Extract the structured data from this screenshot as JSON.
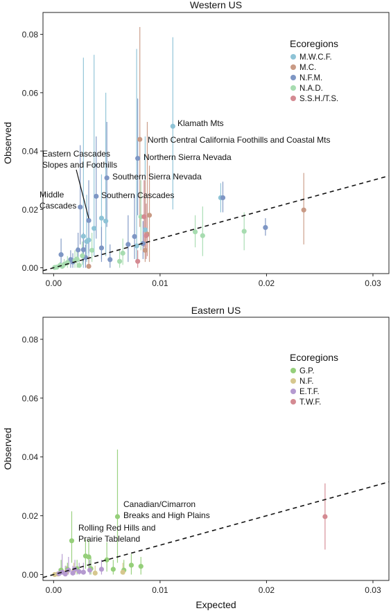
{
  "chart_data": [
    {
      "type": "scatter",
      "title": "Western US",
      "xlabel": "",
      "ylabel": "Observed",
      "xlim": [
        -0.001,
        0.0315
      ],
      "ylim": [
        -0.002,
        0.0875
      ],
      "xticks": [
        0.0,
        0.01,
        0.02,
        0.03
      ],
      "xtick_labels": [
        "0.00",
        "0.01",
        "0.02",
        "0.03"
      ],
      "yticks": [
        0.0,
        0.02,
        0.04,
        0.06,
        0.08
      ],
      "ytick_labels": [
        "0.00",
        "0.02",
        "0.04",
        "0.06",
        "0.08"
      ],
      "grid": false,
      "reference_line": {
        "style": "dashed",
        "from": [
          -0.001,
          -0.001
        ],
        "to": [
          0.0315,
          0.0315
        ]
      },
      "legend": {
        "title": "Ecoregions",
        "position": "top-right"
      },
      "series": [
        {
          "name": "M.W.C.F.",
          "color": "#8ec3d6",
          "points": [
            {
              "x": 0.0028,
              "y": 0.0108,
              "lo": 0.0,
              "hi": 0.072
            },
            {
              "x": 0.0031,
              "y": 0.009,
              "lo": 0.002,
              "hi": 0.025
            },
            {
              "x": 0.0033,
              "y": 0.0095,
              "lo": 0.002,
              "hi": 0.021
            },
            {
              "x": 0.0038,
              "y": 0.0135,
              "lo": 0.004,
              "hi": 0.073
            },
            {
              "x": 0.0045,
              "y": 0.017,
              "lo": 0.003,
              "hi": 0.032
            },
            {
              "x": 0.0049,
              "y": 0.016,
              "lo": 0.004,
              "hi": 0.06
            },
            {
              "x": 0.0078,
              "y": 0.0075,
              "lo": 0.002,
              "hi": 0.075
            },
            {
              "x": 0.0086,
              "y": 0.013,
              "lo": 0.003,
              "hi": 0.045
            },
            {
              "x": 0.0112,
              "y": 0.0485,
              "lo": 0.02,
              "hi": 0.079
            },
            {
              "x": 0.0157,
              "y": 0.024,
              "lo": 0.019,
              "hi": 0.029
            }
          ]
        },
        {
          "name": "M.C.",
          "color": "#c99a85",
          "points": [
            {
              "x": 0.0033,
              "y": 0.0005,
              "lo": 0.0,
              "hi": 0.004
            },
            {
              "x": 0.0081,
              "y": 0.044,
              "lo": 0.014,
              "hi": 0.0825
            },
            {
              "x": 0.0086,
              "y": 0.006,
              "lo": 0.002,
              "hi": 0.03
            },
            {
              "x": 0.0088,
              "y": 0.0115,
              "lo": 0.004,
              "hi": 0.05
            },
            {
              "x": 0.009,
              "y": 0.018,
              "lo": 0.002,
              "hi": 0.035
            },
            {
              "x": 0.0235,
              "y": 0.0198,
              "lo": 0.008,
              "hi": 0.0325
            }
          ]
        },
        {
          "name": "N.F.M.",
          "color": "#7e96c4",
          "points": [
            {
              "x": 0.0007,
              "y": 0.0045,
              "lo": 0.0,
              "hi": 0.01
            },
            {
              "x": 0.0016,
              "y": 0.0028,
              "lo": 0.0,
              "hi": 0.006
            },
            {
              "x": 0.0018,
              "y": 0.002,
              "lo": 0.0,
              "hi": 0.005
            },
            {
              "x": 0.0023,
              "y": 0.0061,
              "lo": 0.002,
              "hi": 0.012
            },
            {
              "x": 0.0025,
              "y": 0.0208,
              "lo": 0.008,
              "hi": 0.042
            },
            {
              "x": 0.0028,
              "y": 0.0062,
              "lo": 0.002,
              "hi": 0.012
            },
            {
              "x": 0.003,
              "y": 0.0035,
              "lo": 0.0,
              "hi": 0.008
            },
            {
              "x": 0.0033,
              "y": 0.0162,
              "lo": 0.005,
              "hi": 0.03
            },
            {
              "x": 0.004,
              "y": 0.0245,
              "lo": 0.01,
              "hi": 0.045
            },
            {
              "x": 0.0045,
              "y": 0.0068,
              "lo": 0.002,
              "hi": 0.014
            },
            {
              "x": 0.005,
              "y": 0.0308,
              "lo": 0.014,
              "hi": 0.05
            },
            {
              "x": 0.0053,
              "y": 0.0028,
              "lo": 0.0,
              "hi": 0.008
            },
            {
              "x": 0.007,
              "y": 0.008,
              "lo": 0.002,
              "hi": 0.018
            },
            {
              "x": 0.0076,
              "y": 0.0107,
              "lo": 0.003,
              "hi": 0.025
            },
            {
              "x": 0.0079,
              "y": 0.0375,
              "lo": 0.018,
              "hi": 0.058
            },
            {
              "x": 0.0084,
              "y": 0.0083,
              "lo": 0.003,
              "hi": 0.016
            },
            {
              "x": 0.0159,
              "y": 0.024,
              "lo": 0.019,
              "hi": 0.0295
            },
            {
              "x": 0.0199,
              "y": 0.0138,
              "lo": 0.011,
              "hi": 0.017
            }
          ]
        },
        {
          "name": "N.A.D.",
          "color": "#a7dcb0",
          "points": [
            {
              "x": 0.0001,
              "y": 0.0001,
              "lo": 0.0,
              "hi": 0.0005
            },
            {
              "x": 0.0003,
              "y": 0.0002,
              "lo": 0.0,
              "hi": 0.0008
            },
            {
              "x": 0.0006,
              "y": 0.0008,
              "lo": 0.0,
              "hi": 0.002
            },
            {
              "x": 0.0008,
              "y": 0.0005,
              "lo": 0.0,
              "hi": 0.0015
            },
            {
              "x": 0.001,
              "y": 0.0012,
              "lo": 0.0,
              "hi": 0.003
            },
            {
              "x": 0.0013,
              "y": 0.0018,
              "lo": 0.0,
              "hi": 0.004
            },
            {
              "x": 0.002,
              "y": 0.0025,
              "lo": 0.0,
              "hi": 0.006
            },
            {
              "x": 0.0022,
              "y": 0.003,
              "lo": 0.0,
              "hi": 0.007
            },
            {
              "x": 0.0024,
              "y": 0.0008,
              "lo": 0.0,
              "hi": 0.003
            },
            {
              "x": 0.0027,
              "y": 0.0041,
              "lo": 0.001,
              "hi": 0.009
            },
            {
              "x": 0.0036,
              "y": 0.006,
              "lo": 0.002,
              "hi": 0.012
            },
            {
              "x": 0.0062,
              "y": 0.0022,
              "lo": 0.0,
              "hi": 0.006
            },
            {
              "x": 0.0065,
              "y": 0.005,
              "lo": 0.001,
              "hi": 0.01
            },
            {
              "x": 0.0082,
              "y": 0.0175,
              "lo": 0.006,
              "hi": 0.03
            },
            {
              "x": 0.0133,
              "y": 0.0123,
              "lo": 0.007,
              "hi": 0.018
            },
            {
              "x": 0.014,
              "y": 0.011,
              "lo": 0.004,
              "hi": 0.021
            },
            {
              "x": 0.0179,
              "y": 0.0125,
              "lo": 0.006,
              "hi": 0.019
            }
          ]
        },
        {
          "name": "S.S.H./T.S.",
          "color": "#d48a92",
          "points": [
            {
              "x": 0.0079,
              "y": 0.0022,
              "lo": 0.0,
              "hi": 0.006
            },
            {
              "x": 0.0085,
              "y": 0.0175,
              "lo": 0.007,
              "hi": 0.03
            },
            {
              "x": 0.0087,
              "y": 0.011,
              "lo": 0.003,
              "hi": 0.022
            }
          ]
        }
      ],
      "annotations": [
        {
          "text": "Klamath Mts",
          "x": 0.0112,
          "y": 0.0485
        },
        {
          "text": "North Central California Foothills and Coastal Mts",
          "x": 0.0081,
          "y": 0.044
        },
        {
          "text": "Northern Sierra Nevada",
          "x": 0.0079,
          "y": 0.0375
        },
        {
          "text": "Eastern Cascades",
          "x": 0.0033,
          "y": 0.0162
        },
        {
          "text": "Slopes and Foothills",
          "x": 0.0033,
          "y": 0.0162
        },
        {
          "text": "Southern Sierra Nevada",
          "x": 0.005,
          "y": 0.0308
        },
        {
          "text": "Middle",
          "x": 0.0025,
          "y": 0.0208
        },
        {
          "text": "Cascades",
          "x": 0.0025,
          "y": 0.0208
        },
        {
          "text": "Southern Cascades",
          "x": 0.004,
          "y": 0.0245
        }
      ]
    },
    {
      "type": "scatter",
      "title": "Eastern US",
      "xlabel": "Expected",
      "ylabel": "Observed",
      "xlim": [
        -0.001,
        0.0315
      ],
      "ylim": [
        -0.002,
        0.0875
      ],
      "xticks": [
        0.0,
        0.01,
        0.02,
        0.03
      ],
      "xtick_labels": [
        "0.00",
        "0.01",
        "0.02",
        "0.03"
      ],
      "yticks": [
        0.0,
        0.02,
        0.04,
        0.06,
        0.08
      ],
      "ytick_labels": [
        "0.00",
        "0.02",
        "0.04",
        "0.06",
        "0.08"
      ],
      "grid": false,
      "reference_line": {
        "style": "dashed",
        "from": [
          -0.001,
          -0.001
        ],
        "to": [
          0.0315,
          0.0315
        ]
      },
      "legend": {
        "title": "Ecoregions",
        "position": "top-right"
      },
      "series": [
        {
          "name": "G.P.",
          "color": "#95cf7a",
          "points": [
            {
              "x": 0.0007,
              "y": 0.0015,
              "lo": 0.0,
              "hi": 0.005
            },
            {
              "x": 0.0013,
              "y": 0.0018,
              "lo": 0.0,
              "hi": 0.004
            },
            {
              "x": 0.0017,
              "y": 0.0115,
              "lo": 0.004,
              "hi": 0.0215
            },
            {
              "x": 0.0022,
              "y": 0.002,
              "lo": 0.0,
              "hi": 0.005
            },
            {
              "x": 0.003,
              "y": 0.0063,
              "lo": 0.002,
              "hi": 0.012
            },
            {
              "x": 0.0033,
              "y": 0.006,
              "lo": 0.002,
              "hi": 0.012
            },
            {
              "x": 0.0035,
              "y": 0.002,
              "lo": 0.0,
              "hi": 0.006
            },
            {
              "x": 0.005,
              "y": 0.005,
              "lo": 0.001,
              "hi": 0.011
            },
            {
              "x": 0.0056,
              "y": 0.0018,
              "lo": 0.0,
              "hi": 0.005
            },
            {
              "x": 0.006,
              "y": 0.0197,
              "lo": 0.004,
              "hi": 0.0425
            },
            {
              "x": 0.0066,
              "y": 0.0015,
              "lo": 0.0,
              "hi": 0.005
            },
            {
              "x": 0.0073,
              "y": 0.0032,
              "lo": 0.0,
              "hi": 0.007
            },
            {
              "x": 0.0082,
              "y": 0.0028,
              "lo": 0.0,
              "hi": 0.006
            }
          ]
        },
        {
          "name": "N.F.",
          "color": "#d6c78e",
          "points": [
            {
              "x": 0.0001,
              "y": 0.0,
              "lo": 0.0,
              "hi": 0.0005
            },
            {
              "x": 0.0004,
              "y": 0.0002,
              "lo": 0.0,
              "hi": 0.001
            },
            {
              "x": 0.0012,
              "y": 0.0008,
              "lo": 0.0,
              "hi": 0.003
            },
            {
              "x": 0.0019,
              "y": 0.0012,
              "lo": 0.0,
              "hi": 0.004
            },
            {
              "x": 0.0039,
              "y": 0.0005,
              "lo": 0.0,
              "hi": 0.003
            },
            {
              "x": 0.0065,
              "y": 0.0008,
              "lo": 0.0,
              "hi": 0.004
            }
          ]
        },
        {
          "name": "E.T.F.",
          "color": "#b59ad0",
          "points": [
            {
              "x": 0.0005,
              "y": 0.0003,
              "lo": 0.0,
              "hi": 0.002
            },
            {
              "x": 0.0008,
              "y": 0.0008,
              "lo": 0.0,
              "hi": 0.007
            },
            {
              "x": 0.0011,
              "y": 0.0002,
              "lo": 0.0,
              "hi": 0.003
            },
            {
              "x": 0.0014,
              "y": 0.0015,
              "lo": 0.0,
              "hi": 0.006
            },
            {
              "x": 0.0018,
              "y": 0.0005,
              "lo": 0.0,
              "hi": 0.003
            },
            {
              "x": 0.002,
              "y": 0.0018,
              "lo": 0.0,
              "hi": 0.005
            },
            {
              "x": 0.0024,
              "y": 0.001,
              "lo": 0.0,
              "hi": 0.004
            },
            {
              "x": 0.0028,
              "y": 0.0008,
              "lo": 0.0,
              "hi": 0.004
            },
            {
              "x": 0.0034,
              "y": 0.0015,
              "lo": 0.0,
              "hi": 0.005
            },
            {
              "x": 0.0045,
              "y": 0.0018,
              "lo": 0.0,
              "hi": 0.005
            }
          ]
        },
        {
          "name": "T.W.F.",
          "color": "#d48a92",
          "points": [
            {
              "x": 0.0255,
              "y": 0.0197,
              "lo": 0.0085,
              "hi": 0.031
            }
          ]
        }
      ],
      "annotations": [
        {
          "text": "Canadian/Cimarron",
          "x": 0.006,
          "y": 0.0197
        },
        {
          "text": "Breaks and High Plains",
          "x": 0.006,
          "y": 0.0197
        },
        {
          "text": "Rolling Red Hills and",
          "x": 0.0017,
          "y": 0.0115
        },
        {
          "text": "Prairie Tableland",
          "x": 0.0017,
          "y": 0.0115
        }
      ]
    }
  ]
}
